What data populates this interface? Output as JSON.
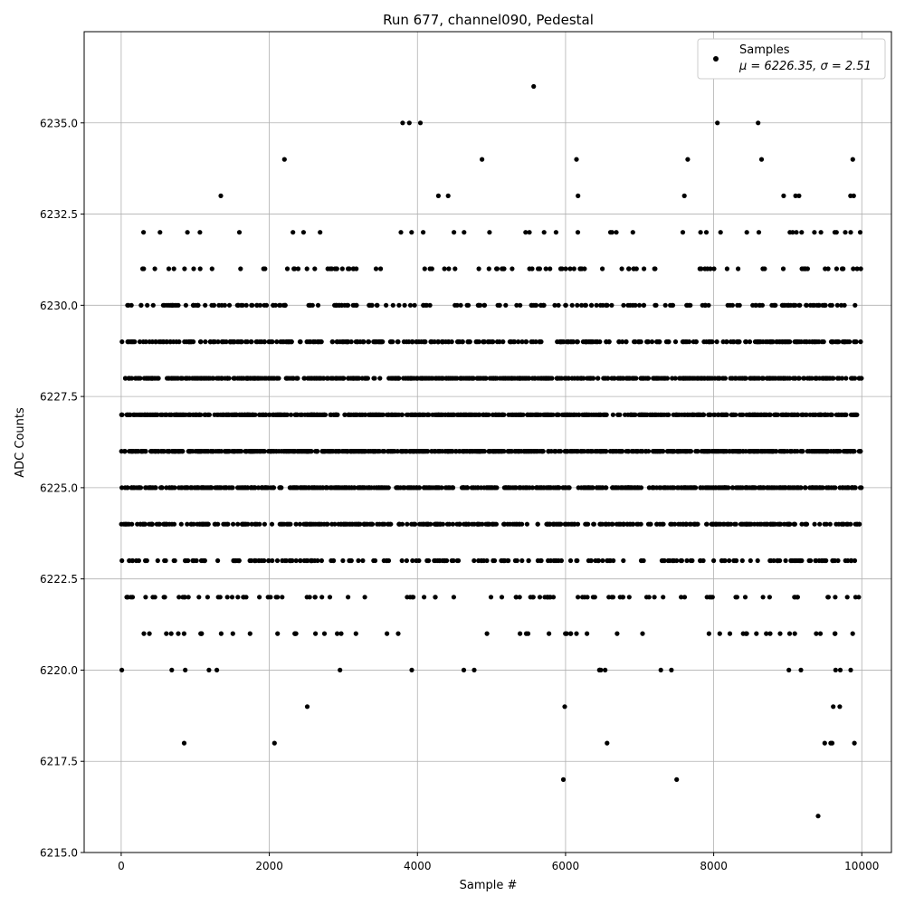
{
  "chart_data": {
    "type": "scatter",
    "title": "Run 677, channel090, Pedestal",
    "xlabel": "Sample #",
    "ylabel": "ADC Counts",
    "xlim": [
      -500,
      10400
    ],
    "ylim": [
      6215.0,
      6237.5
    ],
    "xticks": [
      0,
      2000,
      4000,
      6000,
      8000,
      10000
    ],
    "yticks": [
      6215.0,
      6217.5,
      6220.0,
      6222.5,
      6225.0,
      6227.5,
      6230.0,
      6232.5,
      6235.0
    ],
    "xtick_labels": [
      "0",
      "2000",
      "4000",
      "6000",
      "8000",
      "10000"
    ],
    "ytick_labels": [
      "6215.0",
      "6217.5",
      "6220.0",
      "6222.5",
      "6225.0",
      "6227.5",
      "6230.0",
      "6232.5",
      "6235.0"
    ],
    "grid": true,
    "legend": {
      "position": "top-right",
      "series_label": "Samples",
      "stats_label": "μ = 6226.35, σ = 2.51"
    },
    "marker_color": "#000000",
    "series": [
      {
        "name": "Samples",
        "n_samples": 10000,
        "mean": 6226.35,
        "sigma": 2.51,
        "x_range": [
          0,
          9999
        ],
        "levels": [
          6216,
          6217,
          6218,
          6219,
          6220,
          6221,
          6222,
          6223,
          6224,
          6225,
          6226,
          6227,
          6228,
          6229,
          6230,
          6231,
          6232,
          6233,
          6234,
          6235,
          6236
        ],
        "outliers": [
          {
            "x": 5570,
            "y": 6236
          },
          {
            "x": 9410,
            "y": 6216
          },
          {
            "x": 5970,
            "y": 6217
          },
          {
            "x": 7500,
            "y": 6217
          },
          {
            "x": 3800,
            "y": 6235
          },
          {
            "x": 3890,
            "y": 6235
          },
          {
            "x": 4040,
            "y": 6235
          },
          {
            "x": 8050,
            "y": 6235
          },
          {
            "x": 8600,
            "y": 6235
          },
          {
            "x": 2070,
            "y": 6218
          },
          {
            "x": 850,
            "y": 6218
          },
          {
            "x": 6560,
            "y": 6218
          },
          {
            "x": 9500,
            "y": 6218
          },
          {
            "x": 9580,
            "y": 6218
          },
          {
            "x": 9600,
            "y": 6218
          },
          {
            "x": 9900,
            "y": 6218
          }
        ]
      }
    ]
  }
}
